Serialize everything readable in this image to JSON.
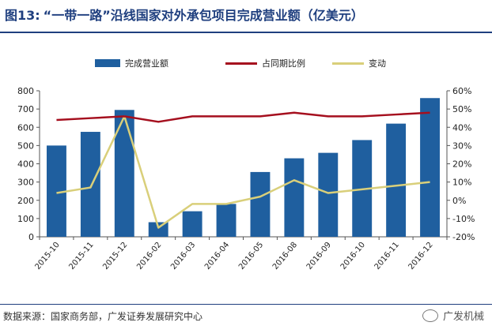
{
  "title": {
    "figure_number": "图13:",
    "text": "“一带一路”沿线国家对外承包项目完成营业额（亿美元）"
  },
  "source_text": "数据来源：国家商务部，广发证券发展研究中心",
  "brand_text": "广发机械",
  "colors": {
    "bar": "#1f5f9f",
    "ratio_line": "#a50f1e",
    "change_line": "#d9cf7a",
    "title": "#1f3f7f"
  },
  "chart_data": {
    "type": "bar",
    "categories": [
      "2015-10",
      "2015-11",
      "2015-12",
      "2016-02",
      "2016-03",
      "2016-04",
      "2016-05",
      "2016-08",
      "2016-09",
      "2016-10",
      "2016-11",
      "2016-12"
    ],
    "series": [
      {
        "name": "完成营业额",
        "type": "bar",
        "axis": "left",
        "values": [
          500,
          575,
          695,
          80,
          140,
          180,
          355,
          430,
          460,
          530,
          620,
          760
        ]
      },
      {
        "name": "占同期比例",
        "type": "line",
        "axis": "right",
        "values": [
          44,
          45,
          46,
          43,
          46,
          46,
          46,
          48,
          46,
          46,
          47,
          48
        ]
      },
      {
        "name": "变动",
        "type": "line",
        "axis": "right",
        "values": [
          4,
          7,
          46,
          -15,
          -2,
          -2,
          2,
          11,
          4,
          6,
          8,
          10
        ]
      }
    ],
    "left_axis": {
      "min": 0,
      "max": 800,
      "ticks": [
        0,
        100,
        200,
        300,
        400,
        500,
        600,
        700,
        800
      ]
    },
    "right_axis": {
      "min": -20,
      "max": 60,
      "ticks": [
        "-20%",
        "-10%",
        "0%",
        "10%",
        "20%",
        "30%",
        "40%",
        "50%",
        "60%"
      ]
    },
    "legend_position": "top",
    "grid": false
  }
}
